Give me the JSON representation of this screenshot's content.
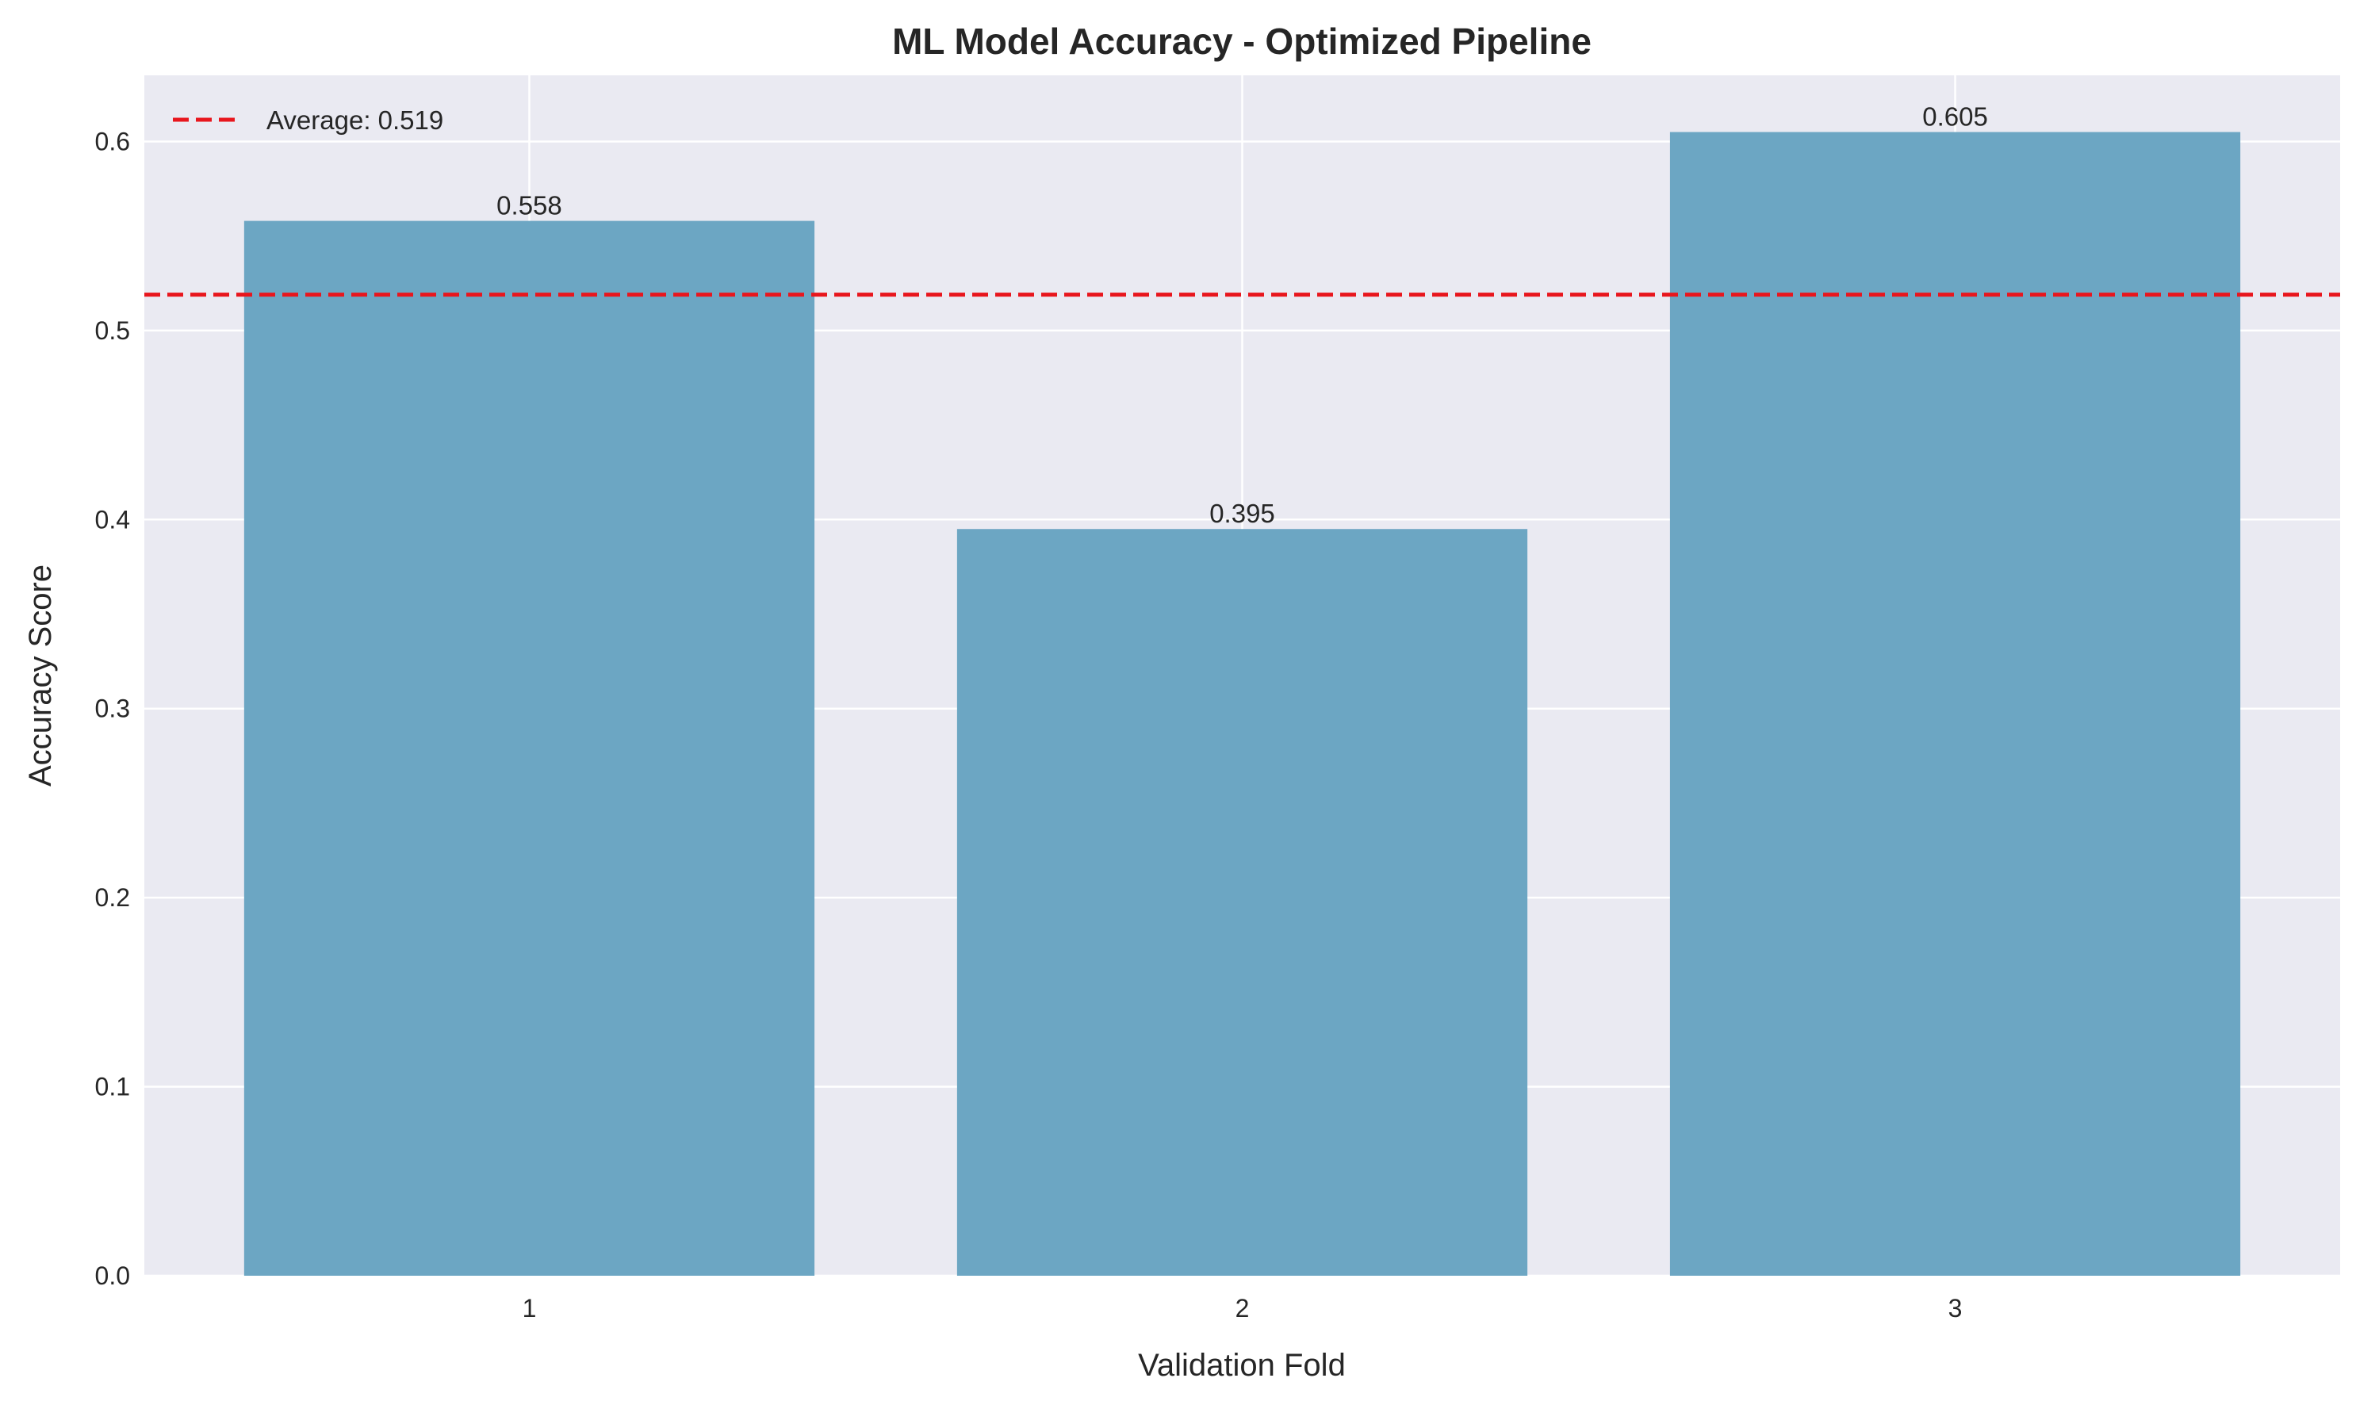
{
  "chart_data": {
    "type": "bar",
    "title": "ML Model Accuracy - Optimized Pipeline",
    "xlabel": "Validation Fold",
    "ylabel": "Accuracy Score",
    "categories": [
      "1",
      "2",
      "3"
    ],
    "values": [
      0.558,
      0.395,
      0.605
    ],
    "value_labels": [
      "0.558",
      "0.395",
      "0.605"
    ],
    "ylim": [
      0,
      0.635
    ],
    "yticks": [
      0.0,
      0.1,
      0.2,
      0.3,
      0.4,
      0.5,
      0.6
    ],
    "ytick_labels": [
      "0.0",
      "0.1",
      "0.2",
      "0.3",
      "0.4",
      "0.5",
      "0.6"
    ],
    "grid": true,
    "reference_line": {
      "value": 0.519,
      "label": "Average: 0.519",
      "color": "#e8161d",
      "style": "dashed"
    },
    "legend": {
      "position": "top-left"
    },
    "colors": {
      "bar": "#67a3c1",
      "background": "#eaeaf2",
      "grid": "#ffffff"
    }
  }
}
